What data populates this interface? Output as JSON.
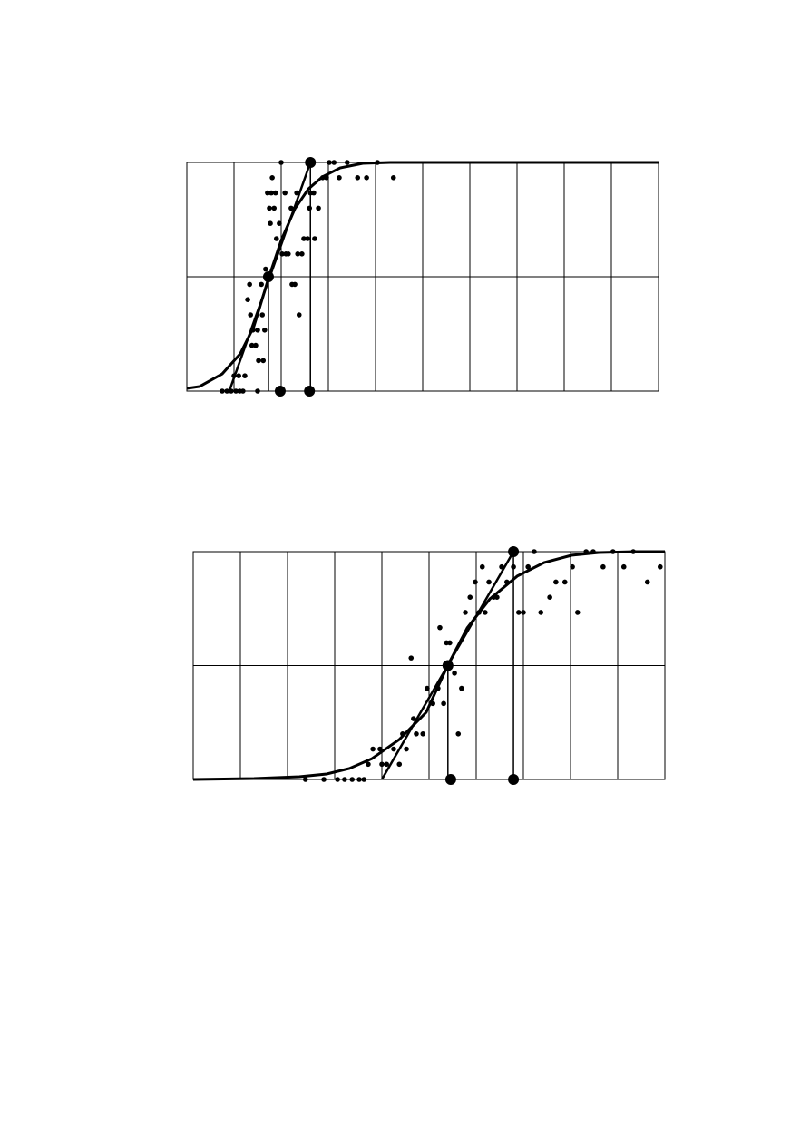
{
  "chart_data": [
    {
      "type": "scatter",
      "grid": true,
      "color": "#000000",
      "xlim": [
        0,
        10
      ],
      "ylim": [
        0,
        15
      ],
      "xticks": [
        0,
        1,
        2,
        3,
        4,
        5,
        6,
        7,
        8,
        9,
        10
      ],
      "yticks": [
        0,
        7.5,
        15
      ],
      "series": [
        {
          "kind": "dots",
          "color": "#000000",
          "x": [
            0.75,
            0.85,
            0.94,
            1.04,
            1.12,
            1.19,
            1.5,
            1.0,
            1.1,
            1.23,
            1.52,
            1.62,
            1.38,
            1.46,
            1.4,
            1.5,
            1.65,
            1.35,
            1.6,
            2.38,
            1.29,
            1.33,
            1.58,
            2.23,
            2.29,
            1.67,
            2.02,
            2.1,
            2.15,
            2.35,
            2.44,
            1.9,
            2.48,
            2.56,
            2.71,
            1.77,
            1.96,
            1.75,
            1.85,
            2.21,
            2.6,
            2.79,
            1.71,
            1.79,
            1.88,
            2.08,
            2.33,
            2.62,
            2.69,
            1.81,
            2.88,
            2.96,
            3.23,
            3.62,
            3.81,
            4.38,
            2.0,
            3.02,
            3.12,
            3.4,
            4.04
          ],
          "values": [
            0,
            0,
            0,
            0,
            0,
            0,
            0,
            1,
            1,
            1,
            2,
            2,
            3,
            3,
            4,
            4,
            4,
            5,
            5,
            5,
            6,
            7,
            7,
            7,
            7,
            8,
            9,
            9,
            9,
            9,
            9,
            10,
            10,
            10,
            10,
            11,
            11,
            12,
            12,
            12,
            12,
            12,
            13,
            13,
            13,
            13,
            13,
            13,
            13,
            14,
            14,
            14,
            14,
            14,
            14,
            14,
            15,
            15,
            15,
            15,
            15
          ]
        },
        {
          "kind": "curve",
          "color": "#000000",
          "x": [
            0,
            0.27,
            0.75,
            1.13,
            1.42,
            1.73,
            2.0,
            2.29,
            2.58,
            2.87,
            3.25,
            3.73,
            4.31,
            10
          ],
          "values": [
            0.18,
            0.3,
            1.13,
            2.44,
            4.23,
            7.38,
            9.88,
            11.96,
            13.27,
            14.05,
            14.64,
            14.94,
            15,
            15
          ]
        },
        {
          "kind": "segment",
          "color": "#000000",
          "x": [
            0.9,
            2.62
          ],
          "values": [
            0,
            15
          ]
        },
        {
          "kind": "drop",
          "color": "#000000",
          "x": [
            1.73,
            2.62
          ],
          "values": [
            7.5,
            15
          ]
        },
        {
          "kind": "markers",
          "color": "#000000",
          "x": [
            1.73,
            2.62,
            1.98,
            2.6
          ],
          "values": [
            7.5,
            15,
            0,
            0
          ]
        }
      ]
    },
    {
      "type": "scatter",
      "grid": true,
      "color": "#000000",
      "xlim": [
        0,
        10
      ],
      "ylim": [
        0,
        15
      ],
      "xticks": [
        0,
        1,
        2,
        3,
        4,
        5,
        6,
        7,
        8,
        9,
        10
      ],
      "yticks": [
        0,
        7.5,
        15
      ],
      "series": [
        {
          "kind": "dots",
          "color": "#000000",
          "x": [
            2.38,
            2.77,
            3.06,
            3.21,
            3.37,
            3.52,
            3.62,
            3.71,
            4.0,
            4.1,
            4.37,
            3.81,
            3.96,
            4.25,
            4.52,
            4.44,
            4.73,
            4.87,
            5.62,
            4.67,
            5.08,
            5.31,
            4.96,
            5.19,
            5.69,
            5.54,
            4.62,
            5.37,
            5.44,
            5.23,
            5.77,
            6.06,
            6.19,
            6.9,
            7.0,
            7.37,
            8.15,
            5.87,
            6.37,
            6.44,
            7.56,
            5.98,
            6.27,
            6.65,
            7.69,
            7.88,
            9.63,
            6.13,
            6.54,
            6.79,
            7.1,
            8.04,
            8.69,
            9.13,
            9.9,
            7.23,
            8.33,
            8.48,
            8.9,
            9.33
          ],
          "values": [
            0,
            0,
            0,
            0,
            0,
            0,
            0,
            1,
            1,
            1,
            1,
            2,
            2,
            2,
            2,
            3,
            3,
            3,
            3,
            4,
            5,
            5,
            6,
            6,
            6,
            7,
            8,
            9,
            9,
            10,
            11,
            11,
            11,
            11,
            11,
            11,
            11,
            12,
            12,
            12,
            12,
            13,
            13,
            13,
            13,
            13,
            13,
            14,
            14,
            14,
            14,
            14,
            14,
            14,
            14,
            15,
            15,
            15,
            15,
            15
          ]
        },
        {
          "kind": "curve",
          "color": "#000000",
          "x": [
            0,
            1.29,
            2.25,
            2.83,
            3.31,
            3.79,
            4.37,
            4.94,
            5.4,
            5.81,
            6.29,
            6.87,
            7.44,
            8.02,
            8.6,
            9.37,
            10
          ],
          "values": [
            0,
            0.06,
            0.18,
            0.36,
            0.72,
            1.37,
            2.63,
            4.42,
            7.53,
            9.98,
            11.89,
            13.39,
            14.28,
            14.76,
            14.94,
            15,
            15
          ]
        },
        {
          "kind": "segment",
          "color": "#000000",
          "x": [
            4.0,
            6.79
          ],
          "values": [
            0,
            15
          ]
        },
        {
          "kind": "drop",
          "color": "#000000",
          "x": [
            5.4,
            6.79
          ],
          "values": [
            7.5,
            15
          ]
        },
        {
          "kind": "markers",
          "color": "#000000",
          "x": [
            5.4,
            6.79,
            5.46,
            6.79
          ],
          "values": [
            7.5,
            15,
            0,
            0
          ]
        }
      ]
    }
  ]
}
